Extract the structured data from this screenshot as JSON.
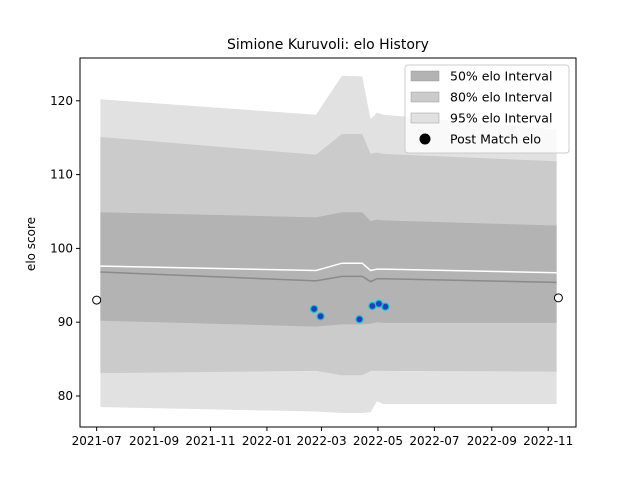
{
  "chart_data": {
    "type": "line",
    "title": "Simione Kuruvoli: elo History",
    "xlabel": "",
    "ylabel": "elo score",
    "xlim": [
      "2021-06-13",
      "2022-12-01"
    ],
    "ylim": [
      75.8,
      125.8
    ],
    "x_ticks": [
      "2021-07",
      "2021-09",
      "2021-11",
      "2022-01",
      "2022-03",
      "2022-05",
      "2022-07",
      "2022-09",
      "2022-11"
    ],
    "y_ticks": [
      80,
      90,
      100,
      110,
      120
    ],
    "x": [
      "2021-07-05",
      "2022-02-23",
      "2022-03-23",
      "2022-04-14",
      "2022-04-23",
      "2022-04-30",
      "2022-05-07",
      "2022-11-10"
    ],
    "bands": {
      "interval_95": {
        "upper": [
          120.2,
          118.1,
          123.4,
          123.3,
          117.5,
          118.4,
          118.1,
          116.1
        ],
        "lower": [
          78.5,
          77.9,
          77.7,
          77.7,
          77.8,
          79.3,
          78.9,
          78.9
        ]
      },
      "interval_80": {
        "upper": [
          115.1,
          112.7,
          115.5,
          115.5,
          112.8,
          113.0,
          112.8,
          111.8
        ],
        "lower": [
          83.1,
          83.4,
          82.8,
          82.8,
          83.4,
          83.4,
          83.4,
          83.3
        ]
      },
      "interval_50": {
        "upper": [
          104.9,
          104.2,
          104.9,
          104.9,
          103.7,
          103.9,
          103.8,
          103.1
        ],
        "lower": [
          90.2,
          89.4,
          89.7,
          89.7,
          89.8,
          90.0,
          89.9,
          89.9
        ]
      }
    },
    "median_line": [
      96.8,
      95.6,
      96.2,
      96.2,
      95.5,
      95.9,
      95.9,
      95.4
    ],
    "mean_line": [
      97.6,
      97.0,
      98.0,
      98.0,
      97.0,
      97.2,
      97.2,
      96.7
    ],
    "post_match_points": [
      {
        "x": "2022-02-21",
        "y": 91.8
      },
      {
        "x": "2022-02-28",
        "y": 90.8
      },
      {
        "x": "2022-04-11",
        "y": 90.4
      },
      {
        "x": "2022-04-25",
        "y": 92.2
      },
      {
        "x": "2022-05-02",
        "y": 92.5
      },
      {
        "x": "2022-05-09",
        "y": 92.1
      }
    ],
    "endpoints": [
      {
        "x": "2021-07-01",
        "y": 93.0
      },
      {
        "x": "2022-11-12",
        "y": 93.3
      }
    ],
    "legend": {
      "position": "upper right",
      "entries": [
        "50% elo Interval",
        "80% elo Interval",
        "95% elo Interval",
        "Post Match elo"
      ]
    },
    "colors": {
      "band_50": "#b3b3b3",
      "band_80": "#cbcbcb",
      "band_95": "#e1e1e1",
      "median": "#8a8a8a",
      "mean": "#ffffff",
      "point_fill": "#1f3fbf",
      "point_edge": "#17becf",
      "endpoint_fill": "#ffffff",
      "endpoint_edge": "#000000"
    }
  }
}
